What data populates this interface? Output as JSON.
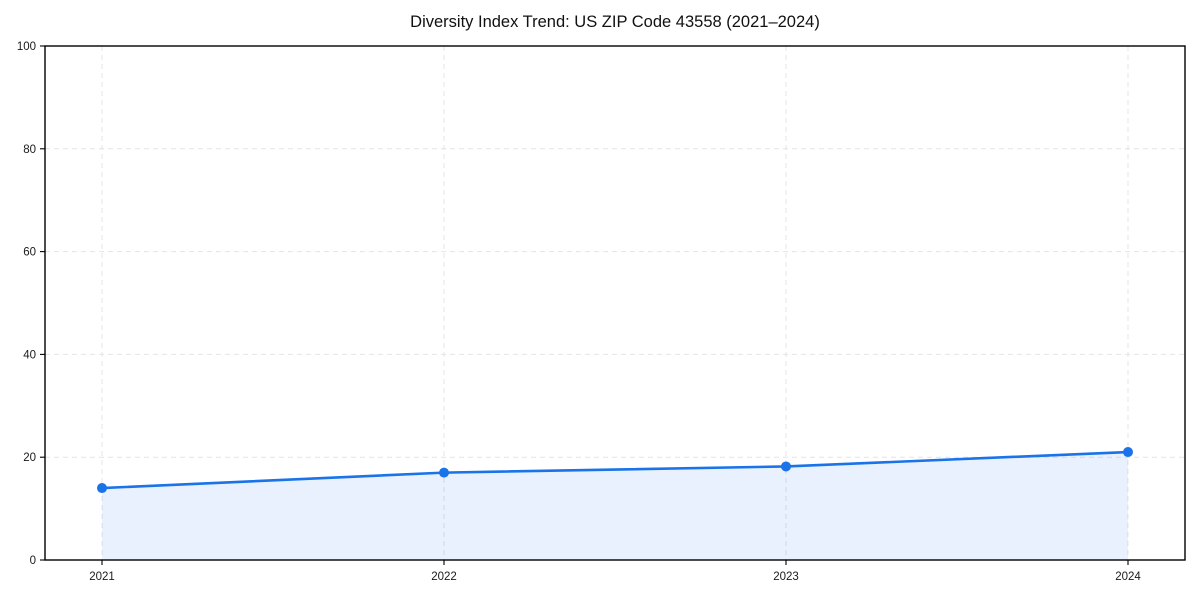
{
  "chart_data": {
    "type": "line",
    "title": "Diversity Index Trend: US ZIP Code 43558 (2021–2024)",
    "xlabel": "",
    "ylabel": "",
    "categories": [
      "2021",
      "2022",
      "2023",
      "2024"
    ],
    "series": [
      {
        "name": "Diversity Index",
        "values": [
          14,
          17,
          18.2,
          21
        ]
      }
    ],
    "ylim": [
      0,
      100
    ],
    "yticks": [
      0,
      20,
      40,
      60,
      80,
      100
    ],
    "grid": true,
    "grid_style": "dashed",
    "area_fill": true,
    "legend": "none",
    "line_color": "#1a73e8",
    "marker_color": "#1a73e8",
    "fill_color": "rgba(26,115,232,0.10)",
    "grid_color": "#e4e4e4",
    "axis_color": "#000000",
    "background_color": "#ffffff"
  }
}
